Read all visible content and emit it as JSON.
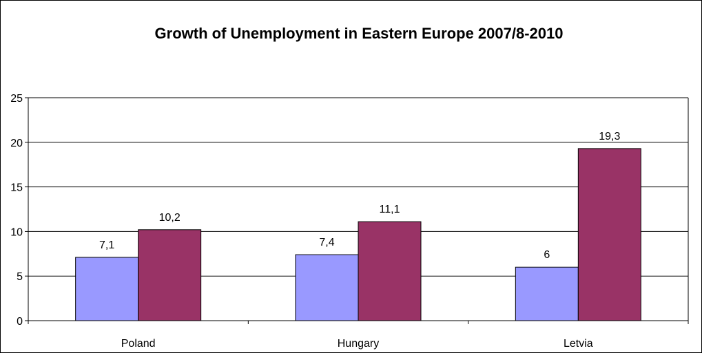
{
  "chart_data": {
    "type": "bar",
    "title": "Growth of Unemployment in Eastern Europe 2007/8-2010",
    "categories": [
      "Poland",
      "Hungary",
      "Letvia"
    ],
    "series": [
      {
        "values": [
          7.1,
          7.4,
          6
        ],
        "labels": [
          "7,1",
          "7,4",
          "6"
        ],
        "color": "#9999ff"
      },
      {
        "values": [
          10.2,
          11.1,
          19.3
        ],
        "labels": [
          "10,2",
          "11,1",
          "19,3"
        ],
        "color": "#993366"
      }
    ],
    "yticks": [
      "0",
      "5",
      "10",
      "15",
      "20",
      "25"
    ],
    "ylim": [
      0,
      25
    ],
    "grid": true,
    "legend": "none"
  }
}
